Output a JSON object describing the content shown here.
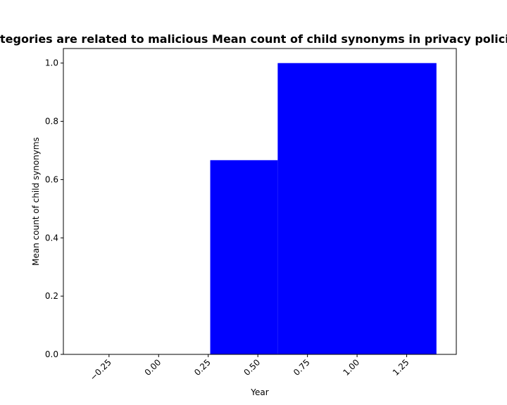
{
  "chart_data": {
    "type": "bar",
    "title": "tegories are related to malicious Mean count of child synonyms in privacy polici",
    "xlabel": "Year",
    "ylabel": "Mean count of child synonyms",
    "bars": [
      {
        "x_start": 0.26,
        "x_end": 0.6,
        "value": 0.6667
      },
      {
        "x_start": 0.6,
        "x_end": 1.4,
        "value": 1.0
      }
    ],
    "xlim": [
      -0.48,
      1.5
    ],
    "ylim": [
      0,
      1.05
    ],
    "x_ticks": [
      {
        "value": -0.25,
        "label": "−0.25"
      },
      {
        "value": 0.0,
        "label": "0.00"
      },
      {
        "value": 0.25,
        "label": "0.25"
      },
      {
        "value": 0.5,
        "label": "0.50"
      },
      {
        "value": 0.75,
        "label": "0.75"
      },
      {
        "value": 1.0,
        "label": "1.00"
      },
      {
        "value": 1.25,
        "label": "1.25"
      }
    ],
    "y_ticks": [
      {
        "value": 0.0,
        "label": "0.0"
      },
      {
        "value": 0.2,
        "label": "0.2"
      },
      {
        "value": 0.4,
        "label": "0.4"
      },
      {
        "value": 0.6,
        "label": "0.6"
      },
      {
        "value": 0.8,
        "label": "0.8"
      },
      {
        "value": 1.0,
        "label": "1.0"
      }
    ],
    "bar_color": "#0000ff",
    "grid": false,
    "legend": "none"
  }
}
